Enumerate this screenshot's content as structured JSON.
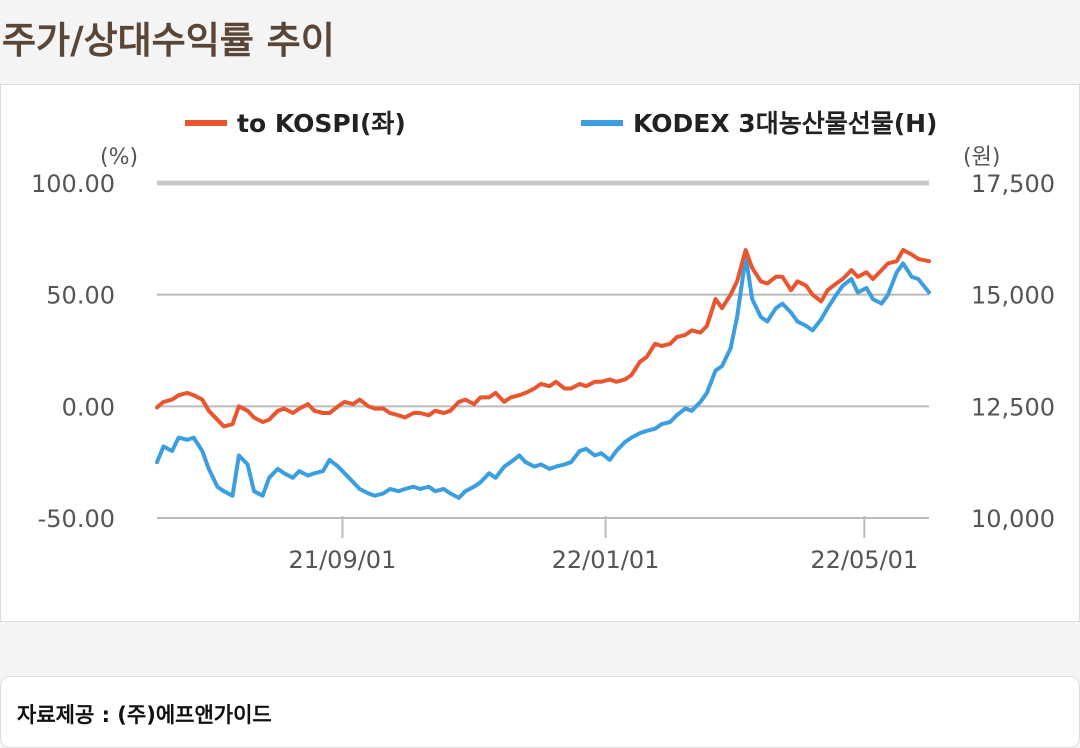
{
  "page": {
    "title": "주가/상대수익률 추이",
    "source": "자료제공 : (주)에프앤가이드"
  },
  "colors": {
    "kospi_relative": "#e8552f",
    "etf_price": "#3a9ee0",
    "grid": "#bbbbbb",
    "grid_top": "#c8c8c8"
  },
  "chart_data": {
    "type": "line",
    "title": "",
    "legend": [
      {
        "name": "to KOSPI(좌)",
        "color": "#e8552f"
      },
      {
        "name": "KODEX 3대농산물선물(H)",
        "color": "#3a9ee0"
      }
    ],
    "left_axis": {
      "unit": "(%)",
      "min": -50,
      "max": 100,
      "ticks": [
        "100.00",
        "50.00",
        "0.00",
        "-50.00"
      ],
      "tick_values": [
        100,
        50,
        0,
        -50
      ]
    },
    "right_axis": {
      "unit": "(원)",
      "min": 10000,
      "max": 17500,
      "ticks": [
        "17,500",
        "15,000",
        "12,500",
        "10,000"
      ],
      "tick_values": [
        17500,
        15000,
        12500,
        10000
      ]
    },
    "x_axis": {
      "start": "2021-06-07",
      "end": "2022-05-31",
      "ticks": [
        {
          "label": "21/09/01",
          "date": "2021-09-01"
        },
        {
          "label": "22/01/01",
          "date": "2022-01-01"
        },
        {
          "label": "22/05/01",
          "date": "2022-05-01"
        }
      ]
    },
    "series": [
      {
        "name": "to KOSPI(좌)",
        "axis": "left",
        "points": [
          [
            "2021-06-07",
            -0.5
          ],
          [
            "2021-06-10",
            2
          ],
          [
            "2021-06-14",
            3
          ],
          [
            "2021-06-17",
            5
          ],
          [
            "2021-06-21",
            6
          ],
          [
            "2021-06-24",
            5
          ],
          [
            "2021-06-28",
            3
          ],
          [
            "2021-07-01",
            -2
          ],
          [
            "2021-07-05",
            -6
          ],
          [
            "2021-07-08",
            -9
          ],
          [
            "2021-07-12",
            -8
          ],
          [
            "2021-07-15",
            0
          ],
          [
            "2021-07-19",
            -2
          ],
          [
            "2021-07-22",
            -5
          ],
          [
            "2021-07-26",
            -7
          ],
          [
            "2021-07-29",
            -6
          ],
          [
            "2021-08-02",
            -2
          ],
          [
            "2021-08-05",
            -1
          ],
          [
            "2021-08-09",
            -3
          ],
          [
            "2021-08-12",
            -1
          ],
          [
            "2021-08-16",
            1
          ],
          [
            "2021-08-19",
            -2
          ],
          [
            "2021-08-23",
            -3
          ],
          [
            "2021-08-26",
            -3
          ],
          [
            "2021-08-30",
            0
          ],
          [
            "2021-09-02",
            2
          ],
          [
            "2021-09-06",
            1
          ],
          [
            "2021-09-09",
            3
          ],
          [
            "2021-09-13",
            0
          ],
          [
            "2021-09-16",
            -1
          ],
          [
            "2021-09-20",
            -1
          ],
          [
            "2021-09-23",
            -3
          ],
          [
            "2021-09-27",
            -4
          ],
          [
            "2021-09-30",
            -5
          ],
          [
            "2021-10-04",
            -3
          ],
          [
            "2021-10-07",
            -3
          ],
          [
            "2021-10-11",
            -4
          ],
          [
            "2021-10-14",
            -2
          ],
          [
            "2021-10-18",
            -3
          ],
          [
            "2021-10-21",
            -2
          ],
          [
            "2021-10-25",
            2
          ],
          [
            "2021-10-28",
            3
          ],
          [
            "2021-11-01",
            1
          ],
          [
            "2021-11-04",
            4
          ],
          [
            "2021-11-08",
            4
          ],
          [
            "2021-11-11",
            6
          ],
          [
            "2021-11-15",
            2
          ],
          [
            "2021-11-18",
            4
          ],
          [
            "2021-11-22",
            5
          ],
          [
            "2021-11-25",
            6
          ],
          [
            "2021-11-29",
            8
          ],
          [
            "2021-12-02",
            10
          ],
          [
            "2021-12-06",
            9
          ],
          [
            "2021-12-09",
            11
          ],
          [
            "2021-12-13",
            8
          ],
          [
            "2021-12-16",
            8
          ],
          [
            "2021-12-20",
            10
          ],
          [
            "2021-12-23",
            9
          ],
          [
            "2021-12-27",
            11
          ],
          [
            "2021-12-30",
            11
          ],
          [
            "2022-01-03",
            12
          ],
          [
            "2022-01-06",
            11
          ],
          [
            "2022-01-10",
            12
          ],
          [
            "2022-01-13",
            14
          ],
          [
            "2022-01-17",
            20
          ],
          [
            "2022-01-20",
            22
          ],
          [
            "2022-01-24",
            28
          ],
          [
            "2022-01-27",
            27
          ],
          [
            "2022-01-31",
            28
          ],
          [
            "2022-02-03",
            31
          ],
          [
            "2022-02-07",
            32
          ],
          [
            "2022-02-10",
            34
          ],
          [
            "2022-02-14",
            33
          ],
          [
            "2022-02-17",
            36
          ],
          [
            "2022-02-21",
            48
          ],
          [
            "2022-02-24",
            44
          ],
          [
            "2022-02-28",
            50
          ],
          [
            "2022-03-03",
            56
          ],
          [
            "2022-03-07",
            70
          ],
          [
            "2022-03-10",
            62
          ],
          [
            "2022-03-14",
            56
          ],
          [
            "2022-03-17",
            55
          ],
          [
            "2022-03-21",
            58
          ],
          [
            "2022-03-24",
            58
          ],
          [
            "2022-03-28",
            52
          ],
          [
            "2022-03-31",
            56
          ],
          [
            "2022-04-04",
            54
          ],
          [
            "2022-04-07",
            50
          ],
          [
            "2022-04-11",
            47
          ],
          [
            "2022-04-14",
            52
          ],
          [
            "2022-04-18",
            55
          ],
          [
            "2022-04-21",
            57
          ],
          [
            "2022-04-25",
            61
          ],
          [
            "2022-04-28",
            58
          ],
          [
            "2022-05-02",
            60
          ],
          [
            "2022-05-05",
            57
          ],
          [
            "2022-05-09",
            61
          ],
          [
            "2022-05-12",
            64
          ],
          [
            "2022-05-16",
            65
          ],
          [
            "2022-05-19",
            70
          ],
          [
            "2022-05-23",
            68
          ],
          [
            "2022-05-26",
            66
          ],
          [
            "2022-05-31",
            65
          ]
        ]
      },
      {
        "name": "KODEX 3대농산물선물(H)",
        "axis": "right",
        "points": [
          [
            "2021-06-07",
            11250
          ],
          [
            "2021-06-10",
            11600
          ],
          [
            "2021-06-14",
            11500
          ],
          [
            "2021-06-17",
            11800
          ],
          [
            "2021-06-21",
            11750
          ],
          [
            "2021-06-24",
            11800
          ],
          [
            "2021-06-28",
            11500
          ],
          [
            "2021-07-01",
            11100
          ],
          [
            "2021-07-05",
            10700
          ],
          [
            "2021-07-08",
            10600
          ],
          [
            "2021-07-12",
            10500
          ],
          [
            "2021-07-15",
            11400
          ],
          [
            "2021-07-19",
            11200
          ],
          [
            "2021-07-22",
            10600
          ],
          [
            "2021-07-26",
            10500
          ],
          [
            "2021-07-29",
            10900
          ],
          [
            "2021-08-02",
            11100
          ],
          [
            "2021-08-05",
            11000
          ],
          [
            "2021-08-09",
            10900
          ],
          [
            "2021-08-12",
            11050
          ],
          [
            "2021-08-16",
            10950
          ],
          [
            "2021-08-19",
            11000
          ],
          [
            "2021-08-23",
            11050
          ],
          [
            "2021-08-26",
            11300
          ],
          [
            "2021-08-30",
            11150
          ],
          [
            "2021-09-02",
            11000
          ],
          [
            "2021-09-06",
            10800
          ],
          [
            "2021-09-09",
            10650
          ],
          [
            "2021-09-13",
            10550
          ],
          [
            "2021-09-16",
            10500
          ],
          [
            "2021-09-20",
            10550
          ],
          [
            "2021-09-23",
            10650
          ],
          [
            "2021-09-27",
            10600
          ],
          [
            "2021-09-30",
            10650
          ],
          [
            "2021-10-04",
            10700
          ],
          [
            "2021-10-07",
            10650
          ],
          [
            "2021-10-11",
            10700
          ],
          [
            "2021-10-14",
            10600
          ],
          [
            "2021-10-18",
            10650
          ],
          [
            "2021-10-21",
            10550
          ],
          [
            "2021-10-25",
            10450
          ],
          [
            "2021-10-28",
            10600
          ],
          [
            "2021-11-01",
            10700
          ],
          [
            "2021-11-04",
            10800
          ],
          [
            "2021-11-08",
            11000
          ],
          [
            "2021-11-11",
            10900
          ],
          [
            "2021-11-15",
            11150
          ],
          [
            "2021-11-18",
            11250
          ],
          [
            "2021-11-22",
            11400
          ],
          [
            "2021-11-25",
            11250
          ],
          [
            "2021-11-29",
            11150
          ],
          [
            "2021-12-02",
            11200
          ],
          [
            "2021-12-06",
            11100
          ],
          [
            "2021-12-09",
            11150
          ],
          [
            "2021-12-13",
            11200
          ],
          [
            "2021-12-16",
            11250
          ],
          [
            "2021-12-20",
            11500
          ],
          [
            "2021-12-23",
            11550
          ],
          [
            "2021-12-27",
            11400
          ],
          [
            "2021-12-30",
            11450
          ],
          [
            "2022-01-03",
            11300
          ],
          [
            "2022-01-06",
            11500
          ],
          [
            "2022-01-10",
            11700
          ],
          [
            "2022-01-13",
            11800
          ],
          [
            "2022-01-17",
            11900
          ],
          [
            "2022-01-20",
            11950
          ],
          [
            "2022-01-24",
            12000
          ],
          [
            "2022-01-27",
            12100
          ],
          [
            "2022-01-31",
            12150
          ],
          [
            "2022-02-03",
            12300
          ],
          [
            "2022-02-07",
            12450
          ],
          [
            "2022-02-10",
            12400
          ],
          [
            "2022-02-14",
            12600
          ],
          [
            "2022-02-17",
            12800
          ],
          [
            "2022-02-21",
            13300
          ],
          [
            "2022-02-24",
            13400
          ],
          [
            "2022-02-28",
            13800
          ],
          [
            "2022-03-03",
            14500
          ],
          [
            "2022-03-07",
            15850
          ],
          [
            "2022-03-10",
            14900
          ],
          [
            "2022-03-14",
            14500
          ],
          [
            "2022-03-17",
            14400
          ],
          [
            "2022-03-21",
            14700
          ],
          [
            "2022-03-24",
            14800
          ],
          [
            "2022-03-28",
            14600
          ],
          [
            "2022-03-31",
            14400
          ],
          [
            "2022-04-04",
            14300
          ],
          [
            "2022-04-07",
            14200
          ],
          [
            "2022-04-11",
            14450
          ],
          [
            "2022-04-14",
            14700
          ],
          [
            "2022-04-18",
            15000
          ],
          [
            "2022-04-21",
            15200
          ],
          [
            "2022-04-25",
            15350
          ],
          [
            "2022-04-28",
            15050
          ],
          [
            "2022-05-02",
            15150
          ],
          [
            "2022-05-05",
            14900
          ],
          [
            "2022-05-09",
            14800
          ],
          [
            "2022-05-12",
            15000
          ],
          [
            "2022-05-16",
            15500
          ],
          [
            "2022-05-19",
            15700
          ],
          [
            "2022-05-23",
            15400
          ],
          [
            "2022-05-26",
            15350
          ],
          [
            "2022-05-31",
            15050
          ]
        ]
      }
    ]
  }
}
